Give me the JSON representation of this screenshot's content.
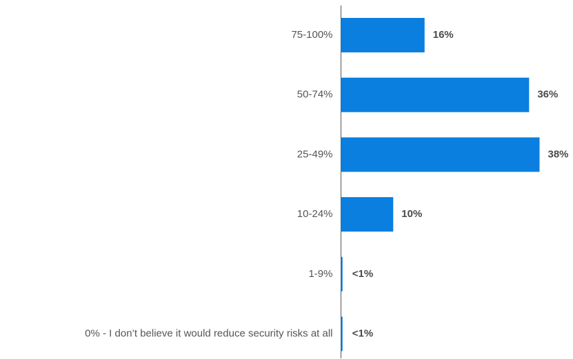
{
  "chart_data": {
    "type": "bar",
    "orientation": "horizontal",
    "categories": [
      "75-100%",
      "50-74%",
      "25-49%",
      "10-24%",
      "1-9%",
      "0% - I don’t believe it would reduce security risks at all"
    ],
    "values": [
      16,
      36,
      38,
      10,
      0.3,
      0.3
    ],
    "data_labels": [
      "16%",
      "36%",
      "38%",
      "10%",
      "<1%",
      "<1%"
    ],
    "title": "",
    "xlabel": "",
    "ylabel": "",
    "xlim": [
      0,
      38
    ],
    "grid": false,
    "legend": "none",
    "bar_color": "#0a7fe0",
    "axis_color": "#555555"
  }
}
